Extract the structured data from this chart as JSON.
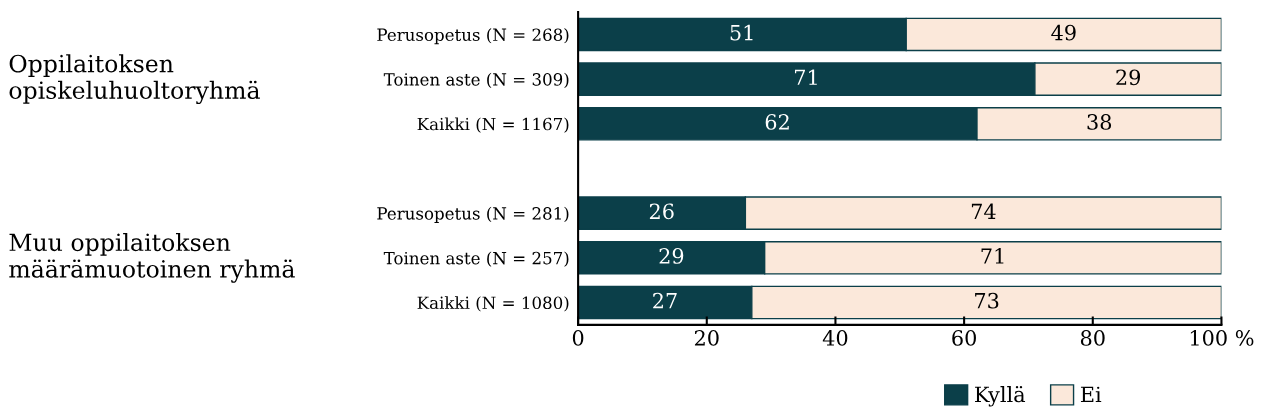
{
  "chart_data": {
    "type": "bar",
    "orientation": "horizontal",
    "stacked": true,
    "categories": [
      "Perusopetus (N = 268)",
      "Toinen aste (N = 309)",
      "Kaikki (N = 1167)",
      null,
      "Perusopetus (N = 281)",
      "Toinen aste (N = 257)",
      "Kaikki (N = 1080)"
    ],
    "series": [
      {
        "name": "Kyllä",
        "color": "#0b3f49",
        "values": [
          51,
          71,
          62,
          null,
          26,
          29,
          27
        ]
      },
      {
        "name": "Ei",
        "color": "#fbe8da",
        "values": [
          49,
          29,
          38,
          null,
          74,
          71,
          73
        ]
      }
    ],
    "xlim": [
      0,
      100
    ],
    "xticks": [
      0,
      20,
      40,
      60,
      80,
      {
        "value": 100,
        "label": "100 %"
      }
    ],
    "data_labels": true,
    "legend": "bottom",
    "grid": false,
    "annotations": [
      "Oppilaitoksen\nopiskeluhuoltoryhmä",
      "Muu oppilaitoksen\nmäärämuotoinen ryhmä"
    ]
  }
}
